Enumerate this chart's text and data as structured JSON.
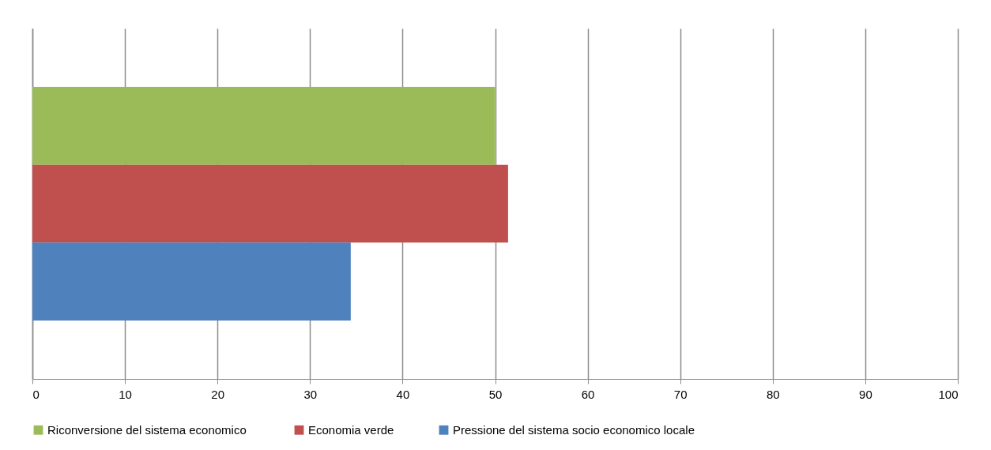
{
  "chart_data": {
    "type": "bar",
    "orientation": "horizontal",
    "categories": [
      null
    ],
    "series": [
      {
        "name": "Riconversione  del sistema economico",
        "color": "#9bbb59",
        "values": [
          50.0
        ]
      },
      {
        "name": "Economia verde",
        "color": "#c0504d",
        "values": [
          51.4
        ]
      },
      {
        "name": "Pressione del sistema socio economico locale",
        "color": "#4f81bd",
        "values": [
          34.4
        ]
      }
    ],
    "xlim": [
      0,
      100
    ],
    "xticks": [
      0,
      10,
      20,
      30,
      40,
      50,
      60,
      70,
      80,
      90,
      100
    ],
    "grid": "x",
    "legend": "bottom",
    "tick_labels": "x"
  }
}
